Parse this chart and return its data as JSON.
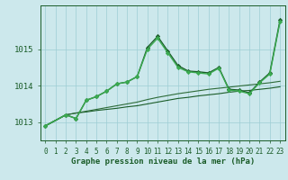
{
  "title": "Graphe pression niveau de la mer (hPa)",
  "background_color": "#cce8ec",
  "grid_color": "#9ecdd4",
  "dark_green": "#1a5c28",
  "mid_green": "#2d8040",
  "light_green": "#4aaa5a",
  "xlim": [
    -0.5,
    23.5
  ],
  "ylim": [
    1012.5,
    1016.2
  ],
  "yticks": [
    1013,
    1014,
    1015
  ],
  "xticks": [
    0,
    1,
    2,
    3,
    4,
    5,
    6,
    7,
    8,
    9,
    10,
    11,
    12,
    13,
    14,
    15,
    16,
    17,
    18,
    19,
    20,
    21,
    22,
    23
  ],
  "series": [
    {
      "x": [
        0,
        1,
        2,
        3,
        4,
        5,
        6,
        7,
        8,
        9,
        10,
        11,
        12,
        13,
        14,
        15,
        16,
        17,
        18,
        19,
        20,
        21,
        22,
        23
      ],
      "y": [
        1012.9,
        1013.05,
        1013.2,
        1013.25,
        1013.28,
        1013.32,
        1013.35,
        1013.38,
        1013.42,
        1013.45,
        1013.5,
        1013.55,
        1013.6,
        1013.65,
        1013.68,
        1013.72,
        1013.75,
        1013.78,
        1013.82,
        1013.85,
        1013.87,
        1013.9,
        1013.93,
        1013.97
      ],
      "color": "#1a5c28",
      "linewidth": 0.8,
      "marker": null
    },
    {
      "x": [
        0,
        1,
        2,
        3,
        4,
        5,
        6,
        7,
        8,
        9,
        10,
        11,
        12,
        13,
        14,
        15,
        16,
        17,
        18,
        19,
        20,
        21,
        22,
        23
      ],
      "y": [
        1012.9,
        1013.05,
        1013.2,
        1013.25,
        1013.3,
        1013.35,
        1013.4,
        1013.45,
        1013.5,
        1013.55,
        1013.62,
        1013.68,
        1013.73,
        1013.78,
        1013.82,
        1013.86,
        1013.9,
        1013.93,
        1013.96,
        1013.99,
        1014.02,
        1014.05,
        1014.08,
        1014.12
      ],
      "color": "#2d6b38",
      "linewidth": 0.8,
      "marker": null
    },
    {
      "x": [
        0,
        2,
        3,
        4,
        5,
        6,
        7,
        8,
        9,
        10,
        11,
        12,
        13,
        14,
        15,
        16,
        17,
        18,
        19,
        20,
        21,
        22,
        23
      ],
      "y": [
        1012.9,
        1013.2,
        1013.1,
        1013.6,
        1013.7,
        1013.85,
        1014.05,
        1014.1,
        1014.25,
        1015.05,
        1015.35,
        1014.95,
        1014.55,
        1014.4,
        1014.38,
        1014.35,
        1014.5,
        1013.9,
        1013.88,
        1013.8,
        1014.1,
        1014.35,
        1015.8
      ],
      "color": "#1a5c28",
      "linewidth": 1.0,
      "marker": "D",
      "markersize": 2.2
    },
    {
      "x": [
        0,
        2,
        3,
        4,
        5,
        6,
        7,
        8,
        9,
        10,
        11,
        12,
        13,
        14,
        15,
        16,
        17,
        18,
        19,
        20,
        21,
        22,
        23
      ],
      "y": [
        1012.9,
        1013.2,
        1013.1,
        1013.6,
        1013.7,
        1013.85,
        1014.05,
        1014.1,
        1014.25,
        1015.0,
        1015.3,
        1014.9,
        1014.5,
        1014.38,
        1014.35,
        1014.32,
        1014.48,
        1013.88,
        1013.85,
        1013.78,
        1014.08,
        1014.32,
        1015.75
      ],
      "color": "#3aaa50",
      "linewidth": 1.0,
      "marker": "D",
      "markersize": 2.2
    }
  ],
  "tick_fontsize": 5.5,
  "title_fontsize": 6.5
}
